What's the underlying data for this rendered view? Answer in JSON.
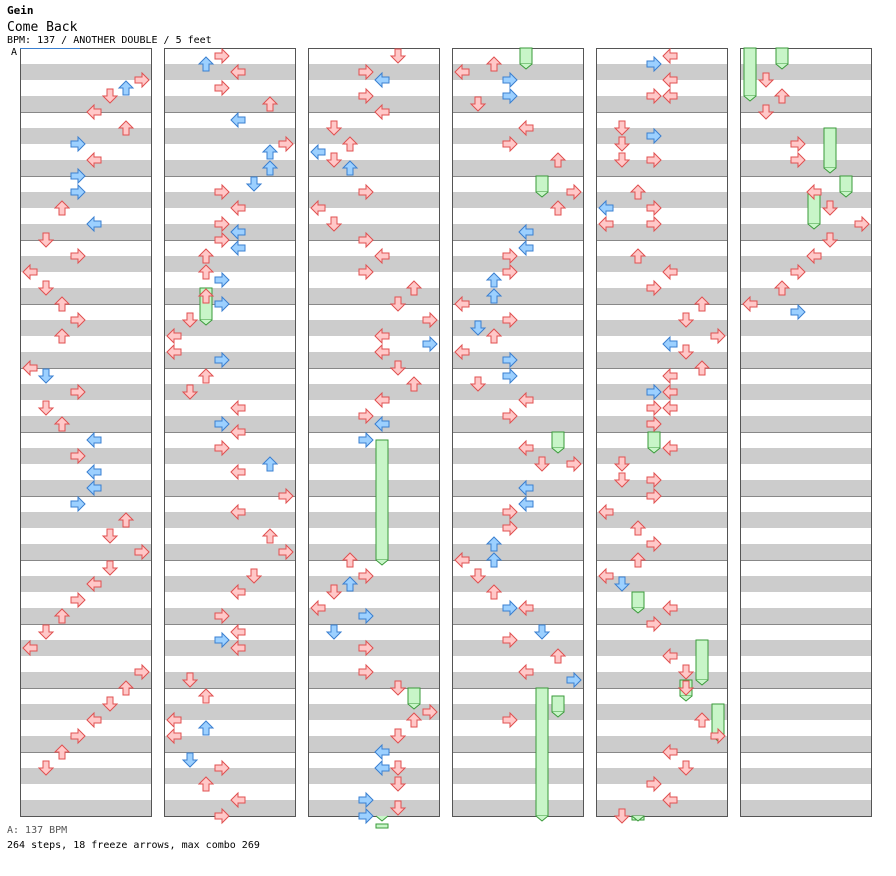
{
  "header": {
    "artist": "Gein",
    "title": "Come Back",
    "meta": "BPM: 137 / ANOTHER DOUBLE / 5 feet",
    "bpm_marker": "A"
  },
  "footer": {
    "bpm_legend": "A: 137 BPM",
    "stats": "264 steps, 18 freeze arrows, max combo 269"
  },
  "colors": {
    "stripe": "#cccccc",
    "border": "#555555",
    "arrow_red_fill": "#ffc8c8",
    "arrow_red_stroke": "#e05050",
    "arrow_blue_fill": "#9cd0ff",
    "arrow_blue_stroke": "#3a7fd0",
    "freeze_fill": "#c8f5c8",
    "freeze_stroke": "#3a9a3a"
  },
  "chart_data": {
    "type": "stepchart",
    "columns": 6,
    "measures_per_column": 12,
    "lanes": [
      "left",
      "down",
      "up",
      "right",
      "left",
      "down",
      "up",
      "right"
    ],
    "notes": [
      [
        0,
        0.375,
        7,
        "r"
      ],
      [
        0,
        0.5,
        6,
        "b"
      ],
      [
        0,
        0.625,
        5,
        "r"
      ],
      [
        0,
        0.875,
        4,
        "r"
      ],
      [
        0,
        1.125,
        6,
        "r"
      ],
      [
        0,
        1.375,
        3,
        "b"
      ],
      [
        0,
        1.625,
        4,
        "r"
      ],
      [
        0,
        1.875,
        3,
        "b"
      ],
      [
        0,
        2.125,
        3,
        "b"
      ],
      [
        0,
        2.375,
        2,
        "r"
      ],
      [
        0,
        2.625,
        4,
        "b"
      ],
      [
        0,
        2.875,
        1,
        "r"
      ],
      [
        0,
        3.125,
        3,
        "r"
      ],
      [
        0,
        3.375,
        0,
        "r"
      ],
      [
        0,
        3.625,
        1,
        "r"
      ],
      [
        0,
        3.875,
        2,
        "r"
      ],
      [
        0,
        4.125,
        3,
        "r"
      ],
      [
        0,
        4.375,
        2,
        "r"
      ],
      [
        0,
        4.875,
        0,
        "r"
      ],
      [
        0,
        5.0,
        1,
        "b"
      ],
      [
        0,
        5.25,
        3,
        "r"
      ],
      [
        0,
        5.5,
        1,
        "r"
      ],
      [
        0,
        5.75,
        2,
        "r"
      ],
      [
        0,
        6.0,
        4,
        "b"
      ],
      [
        0,
        6.25,
        3,
        "r"
      ],
      [
        0,
        6.5,
        4,
        "b"
      ],
      [
        0,
        6.75,
        4,
        "b"
      ],
      [
        0,
        7.0,
        3,
        "b"
      ],
      [
        0,
        7.25,
        6,
        "r"
      ],
      [
        0,
        7.5,
        5,
        "r"
      ],
      [
        0,
        7.75,
        7,
        "r"
      ],
      [
        0,
        8.0,
        5,
        "r"
      ],
      [
        0,
        8.25,
        4,
        "r"
      ],
      [
        0,
        8.5,
        3,
        "r"
      ],
      [
        0,
        8.75,
        2,
        "r"
      ],
      [
        0,
        9.0,
        1,
        "r"
      ],
      [
        0,
        9.25,
        0,
        "r"
      ],
      [
        0,
        9.625,
        7,
        "r"
      ],
      [
        0,
        9.875,
        6,
        "r"
      ],
      [
        0,
        10.125,
        5,
        "r"
      ],
      [
        0,
        10.375,
        4,
        "r"
      ],
      [
        0,
        10.625,
        3,
        "r"
      ],
      [
        0,
        10.875,
        2,
        "r"
      ],
      [
        0,
        11.125,
        1,
        "r"
      ],
      [
        1,
        0.0,
        3,
        "r"
      ],
      [
        1,
        0.125,
        2,
        "b"
      ],
      [
        1,
        0.25,
        4,
        "r"
      ],
      [
        1,
        0.5,
        3,
        "r"
      ],
      [
        1,
        0.75,
        6,
        "r"
      ],
      [
        1,
        1.0,
        4,
        "b"
      ],
      [
        1,
        1.375,
        7,
        "r"
      ],
      [
        1,
        1.5,
        6,
        "b"
      ],
      [
        1,
        1.75,
        6,
        "b"
      ],
      [
        1,
        2.0,
        5,
        "b"
      ],
      [
        1,
        2.125,
        3,
        "r"
      ],
      [
        1,
        2.375,
        4,
        "r"
      ],
      [
        1,
        2.625,
        3,
        "r"
      ],
      [
        1,
        2.75,
        4,
        "b"
      ],
      [
        1,
        2.875,
        3,
        "r"
      ],
      [
        1,
        3.0,
        4,
        "b"
      ],
      [
        1,
        3.125,
        2,
        "r"
      ],
      [
        1,
        3.375,
        2,
        "r"
      ],
      [
        1,
        3.5,
        3,
        "b"
      ],
      [
        1,
        3.75,
        2,
        "r"
      ],
      [
        1,
        3.875,
        3,
        "b"
      ],
      [
        1,
        4.125,
        1,
        "r"
      ],
      [
        1,
        4.375,
        0,
        "r"
      ],
      [
        1,
        4.625,
        0,
        "r"
      ],
      [
        1,
        4.75,
        3,
        "b"
      ],
      [
        1,
        5.0,
        2,
        "r"
      ],
      [
        1,
        5.25,
        1,
        "r"
      ],
      [
        1,
        5.5,
        4,
        "r"
      ],
      [
        1,
        5.75,
        3,
        "b"
      ],
      [
        1,
        5.875,
        4,
        "r"
      ],
      [
        1,
        6.125,
        3,
        "r"
      ],
      [
        1,
        6.375,
        6,
        "b"
      ],
      [
        1,
        6.5,
        4,
        "r"
      ],
      [
        1,
        6.875,
        7,
        "r"
      ],
      [
        1,
        7.125,
        4,
        "r"
      ],
      [
        1,
        7.5,
        6,
        "r"
      ],
      [
        1,
        7.75,
        7,
        "r"
      ],
      [
        1,
        8.125,
        5,
        "r"
      ],
      [
        1,
        8.375,
        4,
        "r"
      ],
      [
        1,
        8.75,
        3,
        "r"
      ],
      [
        1,
        9.0,
        4,
        "r"
      ],
      [
        1,
        9.125,
        3,
        "b"
      ],
      [
        1,
        9.25,
        4,
        "r"
      ],
      [
        1,
        9.75,
        1,
        "r"
      ],
      [
        1,
        10.0,
        2,
        "r"
      ],
      [
        1,
        10.375,
        0,
        "r"
      ],
      [
        1,
        10.5,
        2,
        "b"
      ],
      [
        1,
        10.625,
        0,
        "r"
      ],
      [
        1,
        11.0,
        1,
        "b"
      ],
      [
        1,
        11.125,
        3,
        "r"
      ],
      [
        1,
        11.375,
        2,
        "r"
      ],
      [
        1,
        11.625,
        4,
        "r"
      ],
      [
        1,
        11.875,
        3,
        "r"
      ],
      [
        1,
        12.125,
        5,
        "r"
      ],
      [
        1,
        12.375,
        6,
        "r"
      ],
      [
        1,
        12.625,
        7,
        "r"
      ],
      [
        1,
        12.875,
        6,
        "r"
      ],
      [
        2,
        0.0,
        5,
        "r"
      ],
      [
        2,
        0.25,
        3,
        "r"
      ],
      [
        2,
        0.375,
        4,
        "b"
      ],
      [
        2,
        0.625,
        3,
        "r"
      ],
      [
        2,
        0.875,
        4,
        "r"
      ],
      [
        2,
        1.125,
        1,
        "r"
      ],
      [
        2,
        1.375,
        2,
        "r"
      ],
      [
        2,
        1.625,
        1,
        "r"
      ],
      [
        2,
        1.5,
        0,
        "b"
      ],
      [
        2,
        1.75,
        2,
        "b"
      ],
      [
        2,
        2.125,
        3,
        "r"
      ],
      [
        2,
        2.375,
        0,
        "r"
      ],
      [
        2,
        2.625,
        1,
        "r"
      ],
      [
        2,
        2.875,
        3,
        "r"
      ],
      [
        2,
        3.125,
        4,
        "r"
      ],
      [
        2,
        3.375,
        3,
        "r"
      ],
      [
        2,
        3.625,
        6,
        "r"
      ],
      [
        2,
        3.875,
        5,
        "r"
      ],
      [
        2,
        4.125,
        7,
        "r"
      ],
      [
        2,
        4.375,
        4,
        "r"
      ],
      [
        2,
        4.5,
        7,
        "b"
      ],
      [
        2,
        4.625,
        4,
        "r"
      ],
      [
        2,
        4.875,
        5,
        "r"
      ],
      [
        2,
        5.125,
        6,
        "r"
      ],
      [
        2,
        5.375,
        4,
        "r"
      ],
      [
        2,
        5.625,
        3,
        "r"
      ],
      [
        2,
        5.75,
        4,
        "b"
      ],
      [
        2,
        6.0,
        3,
        "b"
      ],
      [
        2,
        7.875,
        2,
        "r"
      ],
      [
        2,
        8.125,
        3,
        "r"
      ],
      [
        2,
        8.25,
        2,
        "b"
      ],
      [
        2,
        8.375,
        1,
        "r"
      ],
      [
        2,
        8.625,
        0,
        "r"
      ],
      [
        2,
        8.75,
        3,
        "b"
      ],
      [
        2,
        9.0,
        1,
        "b"
      ],
      [
        2,
        9.25,
        3,
        "r"
      ],
      [
        2,
        9.625,
        3,
        "r"
      ],
      [
        2,
        9.875,
        5,
        "r"
      ],
      [
        2,
        10.25,
        7,
        "r"
      ],
      [
        2,
        10.375,
        6,
        "r"
      ],
      [
        2,
        10.625,
        5,
        "r"
      ],
      [
        2,
        10.875,
        4,
        "b"
      ],
      [
        2,
        11.125,
        4,
        "b"
      ],
      [
        2,
        11.125,
        5,
        "r"
      ],
      [
        2,
        11.375,
        5,
        "r"
      ],
      [
        2,
        11.625,
        3,
        "b"
      ],
      [
        2,
        11.75,
        5,
        "r"
      ],
      [
        2,
        11.875,
        3,
        "b"
      ],
      [
        2,
        12.125,
        5,
        "r"
      ],
      [
        3,
        0.125,
        2,
        "r"
      ],
      [
        3,
        0.25,
        0,
        "r"
      ],
      [
        3,
        0.375,
        3,
        "b"
      ],
      [
        3,
        0.625,
        3,
        "b"
      ],
      [
        3,
        0.75,
        1,
        "r"
      ],
      [
        3,
        1.125,
        4,
        "r"
      ],
      [
        3,
        1.375,
        3,
        "r"
      ],
      [
        3,
        1.625,
        6,
        "r"
      ],
      [
        3,
        2.125,
        7,
        "r"
      ],
      [
        3,
        2.375,
        6,
        "r"
      ],
      [
        3,
        2.75,
        4,
        "b"
      ],
      [
        3,
        3.0,
        4,
        "b"
      ],
      [
        3,
        3.125,
        3,
        "r"
      ],
      [
        3,
        3.375,
        3,
        "r"
      ],
      [
        3,
        3.5,
        2,
        "b"
      ],
      [
        3,
        3.75,
        2,
        "b"
      ],
      [
        3,
        3.875,
        0,
        "r"
      ],
      [
        3,
        4.125,
        3,
        "r"
      ],
      [
        3,
        4.25,
        1,
        "b"
      ],
      [
        3,
        4.375,
        2,
        "r"
      ],
      [
        3,
        4.625,
        0,
        "r"
      ],
      [
        3,
        4.75,
        3,
        "b"
      ],
      [
        3,
        5.0,
        3,
        "b"
      ],
      [
        3,
        5.125,
        1,
        "r"
      ],
      [
        3,
        5.375,
        4,
        "r"
      ],
      [
        3,
        5.625,
        3,
        "r"
      ],
      [
        3,
        6.125,
        4,
        "r"
      ],
      [
        3,
        6.375,
        5,
        "r"
      ],
      [
        3,
        6.375,
        7,
        "r"
      ],
      [
        3,
        6.75,
        4,
        "b"
      ],
      [
        3,
        7.0,
        4,
        "b"
      ],
      [
        3,
        7.125,
        3,
        "r"
      ],
      [
        3,
        7.375,
        3,
        "r"
      ],
      [
        3,
        7.625,
        2,
        "b"
      ],
      [
        3,
        7.875,
        0,
        "r"
      ],
      [
        3,
        7.875,
        2,
        "b"
      ],
      [
        3,
        8.125,
        1,
        "r"
      ],
      [
        3,
        8.375,
        2,
        "r"
      ],
      [
        3,
        8.625,
        3,
        "b"
      ],
      [
        3,
        8.625,
        4,
        "r"
      ],
      [
        3,
        9.0,
        5,
        "b"
      ],
      [
        3,
        9.125,
        3,
        "r"
      ],
      [
        3,
        9.375,
        6,
        "r"
      ],
      [
        3,
        9.625,
        4,
        "r"
      ],
      [
        3,
        9.75,
        7,
        "b"
      ],
      [
        3,
        10.375,
        3,
        "r"
      ],
      [
        3,
        12.0,
        3,
        "r"
      ],
      [
        4,
        0.0,
        4,
        "r"
      ],
      [
        4,
        0.125,
        3,
        "b"
      ],
      [
        4,
        0.375,
        4,
        "r"
      ],
      [
        4,
        0.625,
        3,
        "r"
      ],
      [
        4,
        0.625,
        4,
        "r"
      ],
      [
        4,
        1.125,
        1,
        "r"
      ],
      [
        4,
        1.25,
        3,
        "b"
      ],
      [
        4,
        1.375,
        1,
        "r"
      ],
      [
        4,
        1.625,
        1,
        "r"
      ],
      [
        4,
        1.625,
        3,
        "r"
      ],
      [
        4,
        2.125,
        2,
        "r"
      ],
      [
        4,
        2.375,
        0,
        "b"
      ],
      [
        4,
        2.375,
        3,
        "r"
      ],
      [
        4,
        2.625,
        3,
        "r"
      ],
      [
        4,
        2.625,
        0,
        "r"
      ],
      [
        4,
        3.125,
        2,
        "r"
      ],
      [
        4,
        3.375,
        4,
        "r"
      ],
      [
        4,
        3.625,
        3,
        "r"
      ],
      [
        4,
        3.875,
        6,
        "r"
      ],
      [
        4,
        4.125,
        5,
        "r"
      ],
      [
        4,
        4.375,
        7,
        "r"
      ],
      [
        4,
        4.5,
        4,
        "b"
      ],
      [
        4,
        4.625,
        5,
        "r"
      ],
      [
        4,
        4.875,
        6,
        "r"
      ],
      [
        4,
        5.0,
        4,
        "r"
      ],
      [
        4,
        5.25,
        3,
        "b"
      ],
      [
        4,
        5.25,
        4,
        "r"
      ],
      [
        4,
        5.5,
        3,
        "r"
      ],
      [
        4,
        5.5,
        4,
        "r"
      ],
      [
        4,
        5.75,
        3,
        "r"
      ],
      [
        4,
        6.125,
        4,
        "r"
      ],
      [
        4,
        6.375,
        1,
        "r"
      ],
      [
        4,
        6.625,
        1,
        "r"
      ],
      [
        4,
        6.625,
        3,
        "r"
      ],
      [
        4,
        6.875,
        3,
        "r"
      ],
      [
        4,
        7.125,
        0,
        "r"
      ],
      [
        4,
        7.375,
        2,
        "r"
      ],
      [
        4,
        7.625,
        3,
        "r"
      ],
      [
        4,
        7.875,
        2,
        "r"
      ],
      [
        4,
        8.125,
        0,
        "r"
      ],
      [
        4,
        8.25,
        1,
        "b"
      ],
      [
        4,
        8.625,
        4,
        "r"
      ],
      [
        4,
        8.875,
        3,
        "r"
      ],
      [
        4,
        9.375,
        4,
        "r"
      ],
      [
        4,
        9.625,
        5,
        "r"
      ],
      [
        4,
        9.875,
        5,
        "r"
      ],
      [
        4,
        10.375,
        6,
        "r"
      ],
      [
        4,
        10.625,
        7,
        "r"
      ],
      [
        4,
        10.875,
        4,
        "r"
      ],
      [
        4,
        11.125,
        5,
        "r"
      ],
      [
        4,
        11.375,
        3,
        "r"
      ],
      [
        4,
        11.625,
        4,
        "r"
      ],
      [
        4,
        11.875,
        1,
        "r"
      ],
      [
        5,
        0.375,
        1,
        "r"
      ],
      [
        5,
        0.625,
        2,
        "r"
      ],
      [
        5,
        0.875,
        1,
        "r"
      ],
      [
        5,
        1.375,
        3,
        "r"
      ],
      [
        5,
        1.625,
        3,
        "r"
      ],
      [
        5,
        2.125,
        4,
        "r"
      ],
      [
        5,
        2.375,
        5,
        "r"
      ],
      [
        5,
        2.625,
        7,
        "r"
      ],
      [
        5,
        2.875,
        5,
        "r"
      ],
      [
        5,
        3.125,
        4,
        "r"
      ],
      [
        5,
        3.375,
        3,
        "r"
      ],
      [
        5,
        3.625,
        2,
        "r"
      ],
      [
        5,
        3.875,
        0,
        "r"
      ],
      [
        5,
        4.0,
        3,
        "b"
      ]
    ],
    "freezes": [
      [
        1,
        3.625,
        4.125,
        2
      ],
      [
        2,
        6.0,
        7.875,
        4
      ],
      [
        2,
        9.875,
        10.125,
        6
      ],
      [
        2,
        12.0,
        12.125,
        4
      ],
      [
        3,
        -0.125,
        0.125,
        4
      ],
      [
        3,
        1.875,
        2.125,
        5
      ],
      [
        3,
        5.875,
        6.125,
        6
      ],
      [
        3,
        9.875,
        12.0,
        5
      ],
      [
        3,
        10.0,
        10.25,
        6
      ],
      [
        4,
        5.875,
        6.125,
        3
      ],
      [
        4,
        8.375,
        8.625,
        2
      ],
      [
        4,
        9.125,
        9.75,
        6
      ],
      [
        4,
        9.75,
        10.0,
        5
      ],
      [
        4,
        10.125,
        10.625,
        7
      ],
      [
        4,
        11.875,
        12.125,
        2
      ],
      [
        5,
        -0.125,
        0.625,
        0
      ],
      [
        5,
        -0.125,
        0.125,
        2
      ],
      [
        5,
        1.125,
        1.75,
        5
      ],
      [
        5,
        2.125,
        2.625,
        4
      ],
      [
        5,
        1.875,
        2.125,
        6
      ]
    ]
  }
}
